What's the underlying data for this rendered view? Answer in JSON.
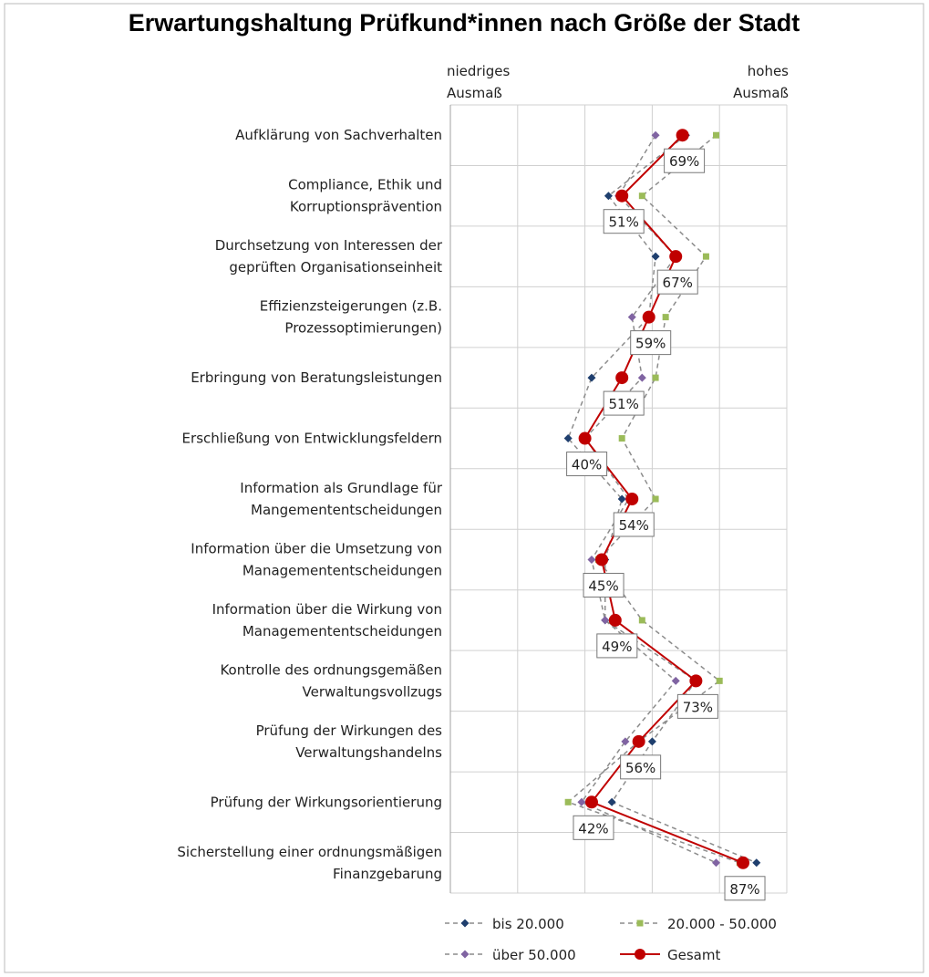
{
  "chart_data": {
    "type": "line",
    "orientation": "horizontal",
    "title": "Erwartungshaltung Prüfkund*innen nach Größe der Stadt",
    "x_label_low": "niedriges\nAusmaß",
    "x_label_high": "hohes\nAusmaß",
    "categories": [
      "Aufklärung von Sachverhalten",
      "Compliance, Ethik und\nKorruptionsprävention",
      "Durchsetzung von Interessen der\ngeprüften Organisationseinheit",
      "Effizienzsteigerungen (z.B.\nProzessoptimierungen)",
      "Erbringung von Beratungsleistungen",
      "Erschließung von Entwicklungsfeldern",
      "Information als Grundlage für\nMangemententscheidungen",
      "Information über die Umsetzung von\nManagemententscheidungen",
      "Information über die Wirkung von\nManagemententscheidungen",
      "Kontrolle des ordnungsgemäßen\nVerwaltungsvollzugs",
      "Prüfung der Wirkungen des\nVerwaltungshandelns",
      "Prüfung der Wirkungsorientierung",
      "Sicherstellung einer ordnungsmäßigen\nFinanzgebarung"
    ],
    "xlim": [
      0,
      100
    ],
    "xticks": [
      0,
      20,
      40,
      60,
      80,
      100
    ],
    "grid": true,
    "series": [
      {
        "name": "bis 20.000",
        "color": "#1f3f6e",
        "marker": "diamond",
        "line_style": "dashed",
        "line_color": "#8c8c8c",
        "values": [
          70,
          47,
          61,
          59,
          42,
          35,
          51,
          46,
          46,
          73,
          60,
          48,
          91
        ]
      },
      {
        "name": "20.000 - 50.000",
        "color": "#9bbb59",
        "marker": "square",
        "line_style": "dashed",
        "line_color": "#8c8c8c",
        "values": [
          79,
          57,
          76,
          64,
          61,
          51,
          61,
          44,
          57,
          80,
          56,
          35,
          86
        ]
      },
      {
        "name": "über 50.000",
        "color": "#8064a2",
        "marker": "diamond",
        "line_style": "dashed",
        "line_color": "#8c8c8c",
        "values": [
          61,
          50,
          67,
          54,
          57,
          40,
          53,
          42,
          46,
          67,
          52,
          39,
          79
        ]
      },
      {
        "name": "Gesamt",
        "color": "#c00000",
        "marker": "circle",
        "line_style": "solid",
        "line_color": "#c00000",
        "values": [
          69,
          51,
          67,
          59,
          51,
          40,
          54,
          45,
          49,
          73,
          56,
          42,
          87
        ],
        "value_labels": [
          "69%",
          "51%",
          "67%",
          "59%",
          "51%",
          "40%",
          "54%",
          "45%",
          "49%",
          "73%",
          "56%",
          "42%",
          "87%"
        ]
      }
    ]
  }
}
